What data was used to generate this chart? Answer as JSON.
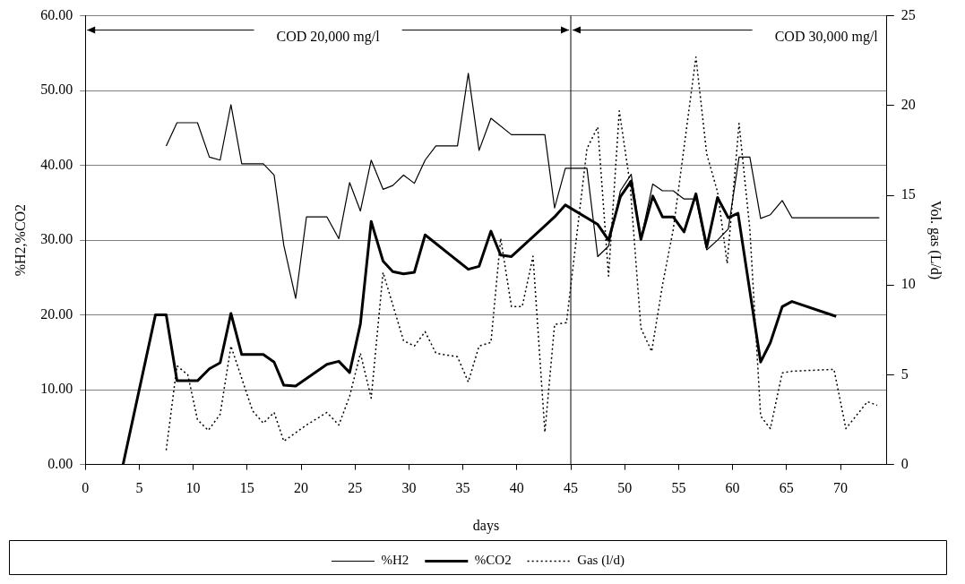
{
  "chart_data": {
    "type": "line",
    "xlabel": "days",
    "ylabel": "%H2,%CO2",
    "y2label": "Vol. gas (L/d)",
    "xlim": [
      0,
      74.3
    ],
    "xticks": [
      0,
      5,
      10,
      15,
      20,
      25,
      30,
      35,
      40,
      45,
      50,
      55,
      60,
      65,
      70
    ],
    "ylim": [
      0,
      60
    ],
    "yticks": [
      {
        "value": 0,
        "label": "0.00"
      },
      {
        "value": 10,
        "label": "10.00"
      },
      {
        "value": 20,
        "label": "20.00"
      },
      {
        "value": 30,
        "label": "30.00"
      },
      {
        "value": 40,
        "label": "40.00"
      },
      {
        "value": 50,
        "label": "50.00"
      },
      {
        "value": 60,
        "label": "60.00"
      }
    ],
    "y2lim": [
      0,
      25
    ],
    "y2ticks": [
      0,
      5,
      10,
      15,
      20,
      25
    ],
    "grid": "y",
    "legend": "bottom",
    "ref_lines": [
      {
        "axis": "x",
        "value": 45,
        "color": "#000000"
      }
    ],
    "annotations": [
      "COD 20,000 mg/l",
      "COD 30,000 mg/l"
    ],
    "series": [
      {
        "name": "%H2",
        "color": "#000000",
        "line_style": "solid",
        "x": [
          7.5,
          8.5,
          10.4,
          11.5,
          12.5,
          13.5,
          14.5,
          16.5,
          17.5,
          18.4,
          19.5,
          20.5,
          22.4,
          23.5,
          24.5,
          25.5,
          26.5,
          27.6,
          28.5,
          29.5,
          30.5,
          31.5,
          32.5,
          34.5,
          35.5,
          36.5,
          37.6,
          39.5,
          42.6,
          43.5,
          44.5,
          46.5,
          47.5,
          48.5,
          49.6,
          50.6,
          51.5,
          52.6,
          53.5,
          54.5,
          55.5,
          56.6,
          57.6,
          58.6,
          59.6,
          60.6,
          61.6,
          62.6,
          63.5,
          64.6,
          65.5,
          73.6
        ],
        "values": [
          42.6,
          45.7,
          45.7,
          41.1,
          40.7,
          48.1,
          40.2,
          40.2,
          38.7,
          29.3,
          22.2,
          33.1,
          33.1,
          30.2,
          37.7,
          33.9,
          40.7,
          36.8,
          37.3,
          38.7,
          37.6,
          40.7,
          42.6,
          42.6,
          52.3,
          42.0,
          46.3,
          44.1,
          44.1,
          34.3,
          39.6,
          39.6,
          27.8,
          29.2,
          36.6,
          38.8,
          30.1,
          37.5,
          36.6,
          36.6,
          35.5,
          35.5,
          28.7,
          30.0,
          31.5,
          41.1,
          41.1,
          32.9,
          33.4,
          35.3,
          33.0,
          33.0
        ]
      },
      {
        "name": "%CO2",
        "color": "#000000",
        "line_style": "solid",
        "x": [
          3.5,
          6.5,
          7.5,
          8.5,
          10.4,
          11.5,
          12.5,
          13.5,
          14.5,
          16.5,
          17.5,
          18.4,
          19.5,
          22.4,
          23.5,
          24.5,
          25.5,
          26.5,
          27.6,
          28.5,
          29.5,
          30.5,
          31.5,
          35.5,
          36.5,
          37.6,
          38.5,
          39.5,
          43.5,
          44.5,
          47.5,
          48.5,
          49.6,
          50.6,
          51.5,
          52.6,
          53.5,
          54.5,
          55.5,
          56.6,
          57.6,
          58.6,
          59.6,
          60.5,
          62.6,
          63.5,
          64.6,
          65.5,
          69.6
        ],
        "values": [
          0,
          20,
          20,
          11.2,
          11.2,
          12.8,
          13.6,
          20.2,
          14.7,
          14.7,
          13.7,
          10.6,
          10.5,
          13.4,
          13.8,
          12.3,
          18.8,
          32.5,
          27.2,
          25.8,
          25.5,
          25.7,
          30.7,
          26.1,
          26.5,
          31.2,
          28.0,
          27.8,
          33.1,
          34.7,
          32.1,
          30.0,
          35.8,
          37.9,
          30.1,
          35.9,
          33.1,
          33.1,
          31.1,
          36.2,
          29.1,
          35.7,
          33.0,
          33.6,
          13.7,
          16.3,
          21.1,
          21.8,
          19.8
        ]
      },
      {
        "name": "Gas (l/d)",
        "color": "#000000",
        "line_style": "dotted",
        "axis": "y2",
        "x": [
          7.5,
          8.5,
          9.5,
          10.4,
          11.4,
          12.5,
          13.5,
          14.5,
          15.5,
          16.5,
          17.5,
          18.4,
          20.5,
          22.4,
          23.5,
          24.5,
          25.5,
          26.5,
          27.6,
          29.5,
          30.5,
          31.5,
          32.5,
          34.5,
          35.5,
          36.5,
          37.6,
          38.5,
          39.5,
          40.5,
          41.5,
          42.6,
          43.5,
          44.6,
          46.5,
          47.5,
          48.5,
          49.5,
          50.5,
          51.5,
          52.5,
          53.5,
          54.5,
          56.6,
          57.6,
          58.6,
          59.5,
          60.6,
          61.6,
          62.6,
          63.5,
          64.6,
          65.5,
          69.4,
          70.5,
          72.5,
          73.4
        ],
        "values": [
          0.8,
          5.5,
          5.0,
          2.5,
          1.9,
          2.8,
          6.6,
          4.8,
          3.0,
          2.3,
          2.9,
          1.3,
          2.2,
          2.9,
          2.2,
          3.8,
          6.2,
          3.7,
          10.7,
          6.9,
          6.6,
          7.4,
          6.2,
          6.0,
          4.6,
          6.6,
          6.8,
          12.6,
          8.8,
          8.8,
          11.6,
          1.8,
          7.8,
          7.9,
          17.6,
          18.8,
          10.5,
          19.7,
          15.6,
          7.6,
          6.3,
          10.0,
          13.1,
          22.7,
          17.3,
          15.2,
          11.2,
          19.0,
          13.1,
          2.7,
          2.0,
          5.1,
          5.2,
          5.3,
          2.0,
          3.5,
          3.3
        ]
      }
    ]
  }
}
